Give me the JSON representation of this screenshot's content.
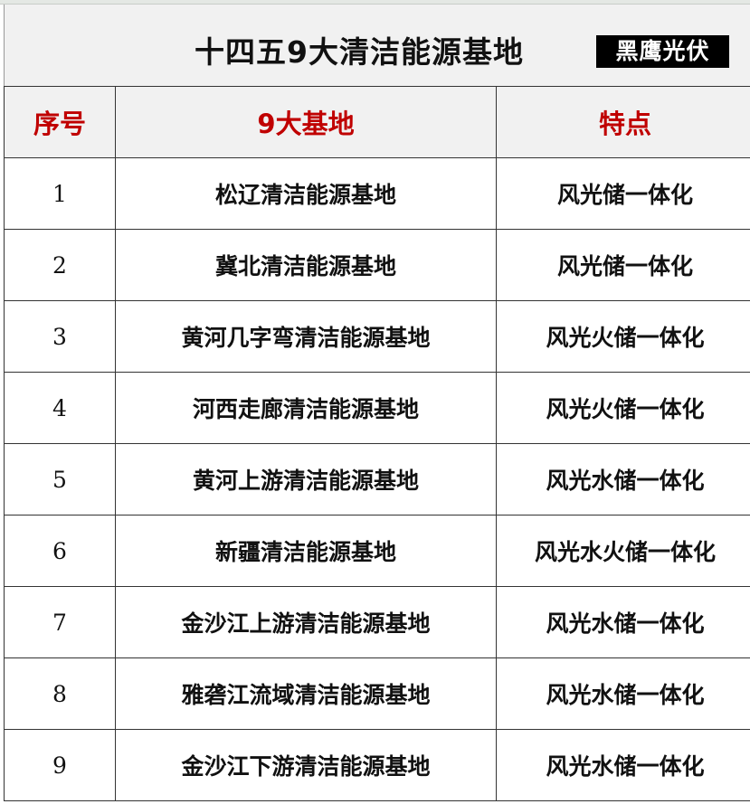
{
  "title": "十四五9大清洁能源基地",
  "logo_text": "黑鹰光伏",
  "colors": {
    "header_text": "#c00000",
    "header_bg": "#f1f1f1"
  },
  "headers": [
    "序号",
    "9大基地",
    "特点"
  ],
  "rows": [
    {
      "no": "1",
      "base": "松辽清洁能源基地",
      "feature": "风光储一体化"
    },
    {
      "no": "2",
      "base": "冀北清洁能源基地",
      "feature": "风光储一体化"
    },
    {
      "no": "3",
      "base": "黄河几字弯清洁能源基地",
      "feature": "风光火储一体化"
    },
    {
      "no": "4",
      "base": "河西走廊清洁能源基地",
      "feature": "风光火储一体化"
    },
    {
      "no": "5",
      "base": "黄河上游清洁能源基地",
      "feature": "风光水储一体化"
    },
    {
      "no": "6",
      "base": "新疆清洁能源基地",
      "feature": "风光水火储一体化"
    },
    {
      "no": "7",
      "base": "金沙江上游清洁能源基地",
      "feature": "风光水储一体化"
    },
    {
      "no": "8",
      "base": "雅砻江流域清洁能源基地",
      "feature": "风光水储一体化"
    },
    {
      "no": "9",
      "base": "金沙江下游清洁能源基地",
      "feature": "风光水储一体化"
    }
  ]
}
